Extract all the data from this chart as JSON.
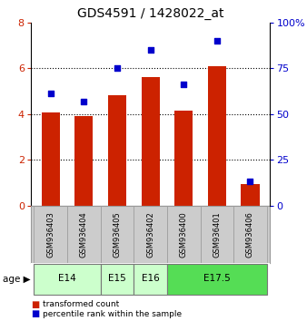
{
  "title": "GDS4591 / 1428022_at",
  "samples": [
    "GSM936403",
    "GSM936404",
    "GSM936405",
    "GSM936402",
    "GSM936400",
    "GSM936401",
    "GSM936406"
  ],
  "bar_values": [
    4.05,
    3.9,
    4.8,
    5.6,
    4.15,
    6.1,
    0.95
  ],
  "dot_values": [
    61,
    57,
    75,
    85,
    66,
    90,
    13
  ],
  "bar_color": "#cc2200",
  "dot_color": "#0000cc",
  "ylim_left": [
    0,
    8
  ],
  "ylim_right": [
    0,
    100
  ],
  "yticks_left": [
    0,
    2,
    4,
    6,
    8
  ],
  "yticks_right": [
    0,
    25,
    50,
    75,
    100
  ],
  "legend_bar_label": "transformed count",
  "legend_dot_label": "percentile rank within the sample",
  "age_groups_info": [
    {
      "label": "E14",
      "start": 0,
      "end": 1,
      "color": "#ccffcc"
    },
    {
      "label": "E15",
      "start": 2,
      "end": 2,
      "color": "#ccffcc"
    },
    {
      "label": "E16",
      "start": 3,
      "end": 3,
      "color": "#ccffcc"
    },
    {
      "label": "E17.5",
      "start": 4,
      "end": 6,
      "color": "#55dd55"
    }
  ]
}
